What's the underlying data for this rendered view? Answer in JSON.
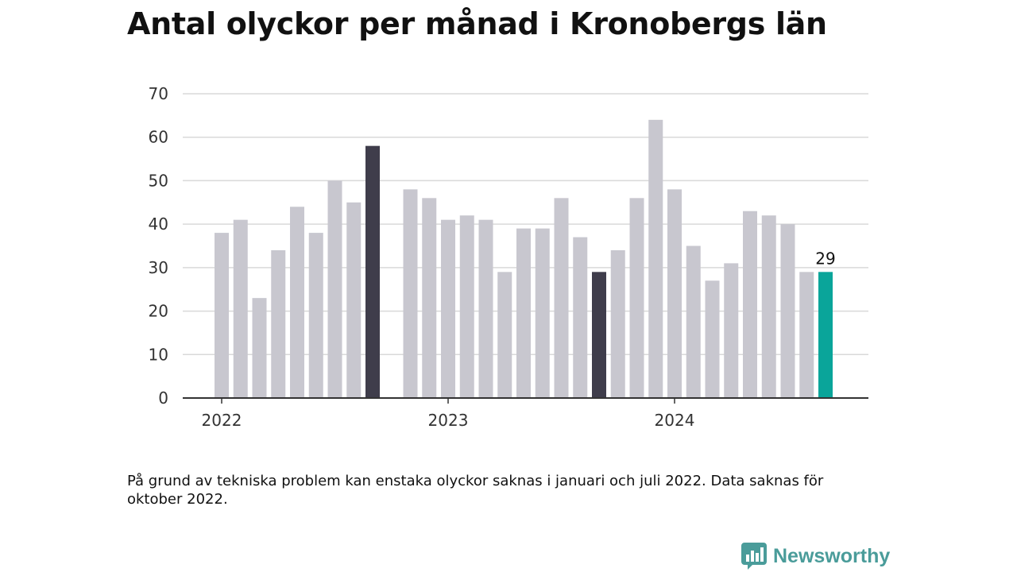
{
  "title": "Antal olyckor per månad i Kronobergs län",
  "footnote": "På grund av tekniska problem kan enstaka olyckor saknas i januari och juli 2022. Data saknas för oktober 2022.",
  "brand": {
    "name": "Newsworthy",
    "icon": "newsworthy-logo-icon"
  },
  "colors": {
    "default_bar": "#c8c7cf",
    "highlight_bar": "#3f3d4b",
    "latest_bar": "#0aa59a",
    "grid": "#d9d9d9",
    "axis": "#333333"
  },
  "chart_data": {
    "type": "bar",
    "title": "Antal olyckor per månad i Kronobergs län",
    "xlabel": "",
    "ylabel": "",
    "ylim": [
      0,
      70
    ],
    "y_ticks": [
      0,
      10,
      20,
      30,
      40,
      50,
      60,
      70
    ],
    "x_tick_labels": [
      {
        "label": "2022",
        "category": "2022-01"
      },
      {
        "label": "2023",
        "category": "2023-01"
      },
      {
        "label": "2024",
        "category": "2024-01"
      }
    ],
    "grid": true,
    "categories": [
      "2022-01",
      "2022-02",
      "2022-03",
      "2022-04",
      "2022-05",
      "2022-06",
      "2022-07",
      "2022-08",
      "2022-09",
      "2022-10",
      "2022-11",
      "2022-12",
      "2023-01",
      "2023-02",
      "2023-03",
      "2023-04",
      "2023-05",
      "2023-06",
      "2023-07",
      "2023-08",
      "2023-09",
      "2023-10",
      "2023-11",
      "2023-12",
      "2024-01",
      "2024-02",
      "2024-03",
      "2024-04",
      "2024-05",
      "2024-06",
      "2024-07",
      "2024-08",
      "2024-09"
    ],
    "values": [
      38,
      41,
      23,
      34,
      44,
      38,
      50,
      45,
      58,
      null,
      48,
      46,
      41,
      42,
      41,
      29,
      39,
      39,
      46,
      37,
      29,
      34,
      46,
      64,
      48,
      35,
      27,
      31,
      43,
      42,
      40,
      29,
      29
    ],
    "highlight": [
      "2022-09",
      "2023-09"
    ],
    "latest": "2024-09",
    "data_labels": [
      {
        "category": "2024-09",
        "text": "29"
      }
    ]
  }
}
